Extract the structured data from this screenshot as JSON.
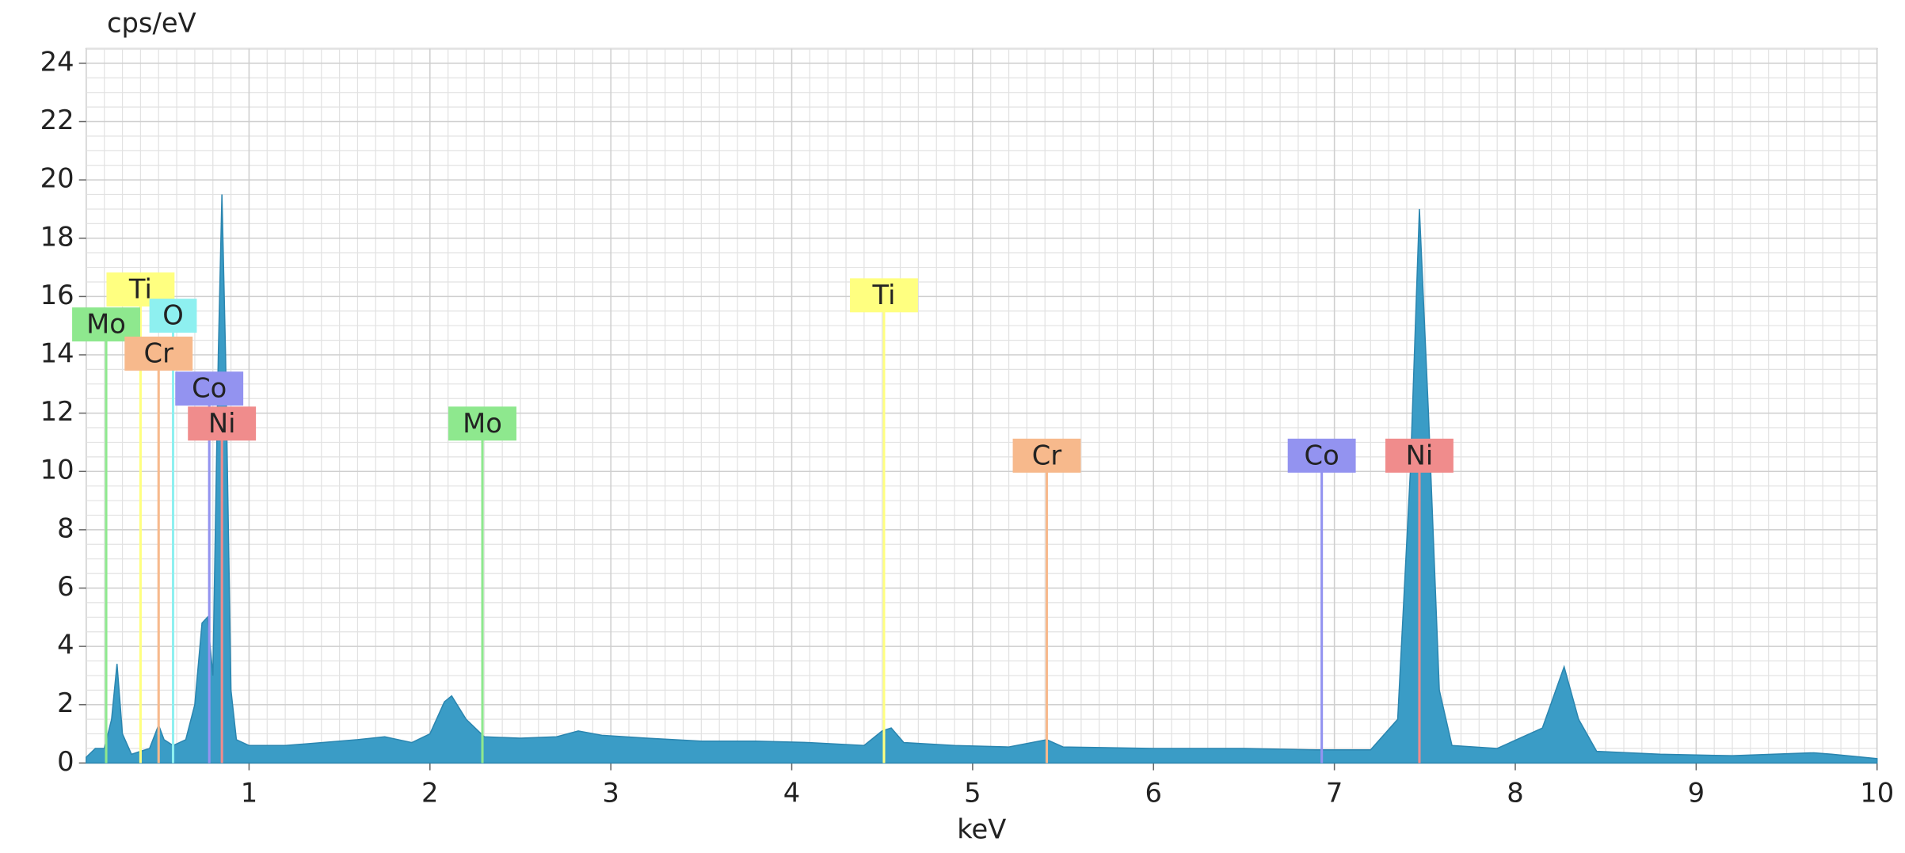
{
  "chart_data": {
    "type": "area",
    "y_label": "cps/eV",
    "x_label": "keV",
    "color": "#3a9cc6",
    "x": [
      0.1,
      0.15,
      0.2,
      0.24,
      0.27,
      0.3,
      0.35,
      0.4,
      0.45,
      0.5,
      0.53,
      0.58,
      0.65,
      0.7,
      0.74,
      0.77,
      0.8,
      0.83,
      0.85,
      0.87,
      0.9,
      0.93,
      1.0,
      1.2,
      1.4,
      1.6,
      1.75,
      1.9,
      2.0,
      2.08,
      2.12,
      2.2,
      2.3,
      2.5,
      2.7,
      2.82,
      2.95,
      3.2,
      3.5,
      3.8,
      4.1,
      4.4,
      4.5,
      4.55,
      4.62,
      4.9,
      5.2,
      5.41,
      5.5,
      6.0,
      6.5,
      6.9,
      7.2,
      7.35,
      7.42,
      7.47,
      7.52,
      7.58,
      7.65,
      7.9,
      8.15,
      8.27,
      8.35,
      8.45,
      8.8,
      9.2,
      9.65,
      9.75,
      10
    ],
    "values": [
      0.2,
      0.5,
      0.5,
      1.5,
      3.4,
      1.0,
      0.3,
      0.4,
      0.5,
      1.3,
      0.8,
      0.6,
      0.8,
      2.0,
      4.8,
      5.0,
      3.0,
      14,
      19.5,
      14,
      2.5,
      0.8,
      0.6,
      0.6,
      0.7,
      0.8,
      0.9,
      0.7,
      1.0,
      2.1,
      2.3,
      1.5,
      0.9,
      0.85,
      0.9,
      1.1,
      0.95,
      0.85,
      0.75,
      0.75,
      0.7,
      0.6,
      1.1,
      1.2,
      0.7,
      0.6,
      0.55,
      0.8,
      0.55,
      0.5,
      0.5,
      0.45,
      0.45,
      1.5,
      10,
      19,
      12,
      2.5,
      0.6,
      0.5,
      1.2,
      3.3,
      1.5,
      0.4,
      0.3,
      0.25,
      0.35,
      0.3,
      0.15
    ],
    "markers": [
      {
        "label": "Ti",
        "x": 0.4,
        "y": 16.2,
        "color": "#ffff80"
      },
      {
        "label": "Mo",
        "x": 0.21,
        "y": 15.0,
        "color": "#8ee88e"
      },
      {
        "label": "O",
        "x": 0.58,
        "y": 15.3,
        "color": "#8ef0f0"
      },
      {
        "label": "Cr",
        "x": 0.5,
        "y": 14.0,
        "color": "#f7b98c"
      },
      {
        "label": "Co",
        "x": 0.78,
        "y": 12.8,
        "color": "#9393f0"
      },
      {
        "label": "Ni",
        "x": 0.85,
        "y": 11.6,
        "color": "#f08c8c"
      },
      {
        "label": "Mo",
        "x": 2.29,
        "y": 11.6,
        "color": "#8ee88e"
      },
      {
        "label": "Ti",
        "x": 4.51,
        "y": 16.0,
        "color": "#ffff80"
      },
      {
        "label": "Cr",
        "x": 5.41,
        "y": 10.5,
        "color": "#f7b98c"
      },
      {
        "label": "Co",
        "x": 6.93,
        "y": 10.5,
        "color": "#9393f0"
      },
      {
        "label": "Ni",
        "x": 7.47,
        "y": 10.5,
        "color": "#f08c8c"
      }
    ],
    "xlim": [
      0.1,
      10
    ],
    "ylim": [
      0,
      24.5
    ],
    "xticks": [
      1,
      2,
      3,
      4,
      5,
      6,
      7,
      8,
      9,
      10
    ],
    "yticks": [
      0,
      2,
      4,
      6,
      8,
      10,
      12,
      14,
      16,
      18,
      20,
      22,
      24
    ],
    "grid": true
  }
}
